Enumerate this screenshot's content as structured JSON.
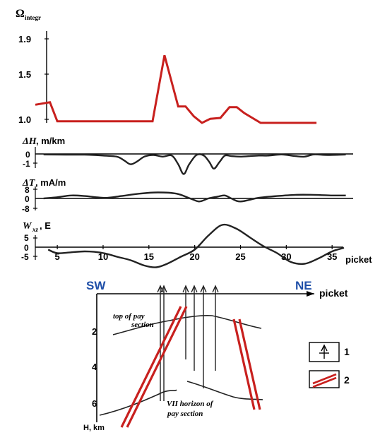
{
  "colors": {
    "accent_red": "#c8201e",
    "curve_black": "#222222",
    "direction_blue": "#1f4fa8"
  },
  "chart_data": [
    {
      "type": "line",
      "ylabel_main": "Ω",
      "ylabel_sub": "integr",
      "yticks": [
        "1.9",
        "1.5",
        "1.0"
      ],
      "ylim": [
        0.98,
        2.0
      ],
      "xlim": [
        2.6,
        37.3
      ],
      "series": [
        {
          "color": "#c8201e",
          "x": [
            2.6,
            4.2,
            5.0,
            15.4,
            16.7,
            18.2,
            19.0,
            19.9,
            20.8,
            21.7,
            22.8,
            23.8,
            24.6,
            25.4,
            27.2,
            30.0,
            33.3
          ],
          "y": [
            1.2,
            1.23,
            1.0,
            1.0,
            1.8,
            1.18,
            1.18,
            1.06,
            0.98,
            1.03,
            1.04,
            1.17,
            1.17,
            1.1,
            0.98,
            0.98,
            0.98
          ]
        }
      ]
    },
    {
      "type": "line",
      "ylabel_main": "ΔH",
      "ylabel_unit": ", m/km",
      "yticks": [
        "0",
        "-1"
      ],
      "ylim": [
        -2.0,
        0.6
      ],
      "xlim": [
        2.6,
        37.3
      ],
      "series": [
        {
          "color": "#222222",
          "x": [
            3.5,
            6,
            8,
            10,
            11.5,
            12.3,
            13,
            13.7,
            14.5,
            15.5,
            16.5,
            17.5,
            18.2,
            18.8,
            19.4,
            20.2,
            21,
            21.6,
            22.1,
            22.7,
            23.3,
            24,
            25,
            26,
            27,
            28,
            29.5,
            31,
            32,
            33,
            34.5,
            36.5
          ],
          "y": [
            -0.1,
            -0.12,
            -0.12,
            -0.2,
            -0.3,
            -0.65,
            -1.0,
            -0.75,
            -0.3,
            -0.15,
            -0.3,
            -0.2,
            -1.0,
            -1.9,
            -1.0,
            -0.15,
            -0.2,
            -0.8,
            -1.4,
            -0.8,
            -0.2,
            -0.25,
            -0.3,
            -0.25,
            -0.2,
            -0.2,
            -0.1,
            -0.25,
            -0.3,
            -0.1,
            -0.15,
            -0.1
          ]
        }
      ]
    },
    {
      "type": "line",
      "ylabel_main": "ΔT",
      "ylabel_unit": ", mA/m",
      "yticks": [
        "8",
        "0",
        "-8"
      ],
      "ylim": [
        -10,
        10
      ],
      "xlim": [
        2.6,
        37.3
      ],
      "series": [
        {
          "color": "#222222",
          "x": [
            3.5,
            5,
            6.5,
            8,
            9.5,
            10.5,
            12,
            14,
            16,
            18,
            19.5,
            20.5,
            21.5,
            22.5,
            23.3,
            24,
            25,
            27,
            29,
            31,
            33,
            35,
            36.5
          ],
          "y": [
            0,
            1.0,
            2.5,
            2.0,
            0.8,
            0.5,
            2.0,
            4.0,
            5.0,
            4.0,
            0,
            -2.5,
            0,
            1.5,
            2.5,
            0,
            -2.5,
            0.5,
            2.0,
            3.0,
            3.0,
            2.5,
            2.5
          ]
        }
      ]
    },
    {
      "type": "line",
      "ylabel_main": "W",
      "ylabel_sub": "xz",
      "ylabel_unit": ", E",
      "yticks": [
        "5",
        "0",
        "-5"
      ],
      "xticks": [
        "5",
        "10",
        "15",
        "20",
        "25",
        "30",
        "35"
      ],
      "xlabel": "picket",
      "ylim": [
        -8,
        18
      ],
      "xlim": [
        2.6,
        37.3
      ],
      "series": [
        {
          "color": "#222222",
          "x": [
            4,
            5,
            6.5,
            8,
            9.5,
            10.5,
            11.5,
            13,
            14.5,
            15.8,
            17,
            18.5,
            20,
            21.5,
            23,
            24.5,
            26,
            27.5,
            29,
            30.5,
            32,
            33.5,
            35,
            36.3
          ],
          "y": [
            3,
            1,
            1.5,
            2,
            1.5,
            0.5,
            -1,
            -3,
            -6,
            -7,
            -5,
            -1,
            3,
            11,
            17,
            15,
            10,
            5,
            1,
            -4,
            -5,
            -2,
            2,
            4
          ]
        }
      ]
    }
  ],
  "section": {
    "direction_left": "SW",
    "direction_right": "NE",
    "axis_label": "picket",
    "depth_label": "H, km",
    "depth_ticks": [
      "2",
      "4",
      "6"
    ],
    "annotation_top": [
      "top of pay",
      "section"
    ],
    "annotation_bottom": [
      "VII horizon of",
      "pay section"
    ],
    "legend": [
      {
        "symbol": "well-icon",
        "label": "1"
      },
      {
        "symbol": "fault-icon",
        "label": "2"
      }
    ]
  }
}
